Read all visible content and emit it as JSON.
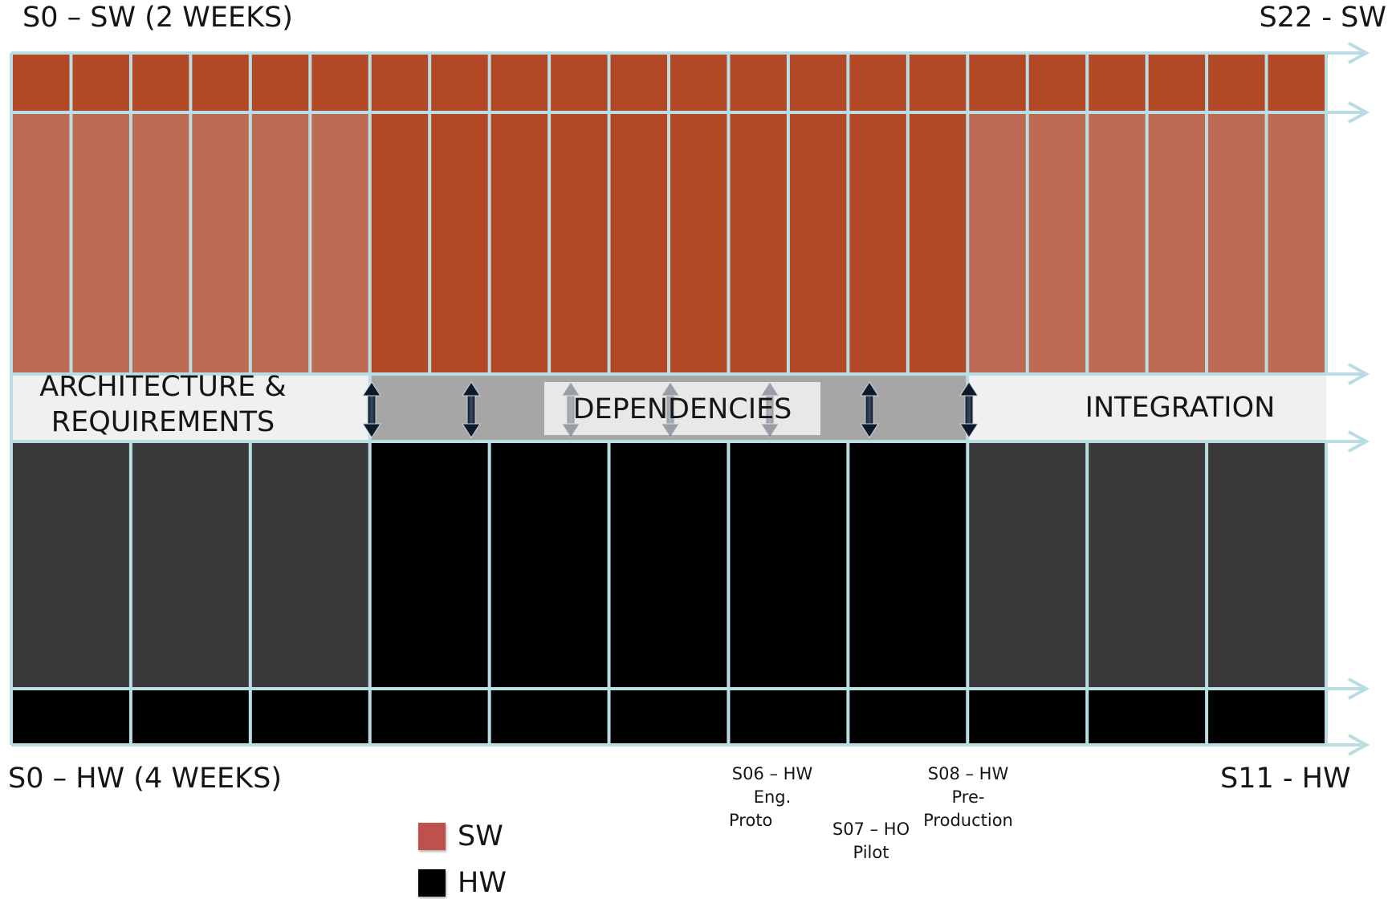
{
  "labels": {
    "sw_start": "S0 – SW (2 WEEKS)",
    "sw_end": "S22 - SW",
    "hw_start": "S0 – HW (4 WEEKS)",
    "hw_end": "S11 - HW"
  },
  "phases": {
    "architecture": [
      "ARCHITECTURE &",
      "REQUIREMENTS"
    ],
    "dependencies": "DEPENDENCIES",
    "integration": "INTEGRATION"
  },
  "milestones": {
    "s06": [
      "S06 – HW",
      "Eng.",
      "Proto"
    ],
    "s07": [
      "S07 – HO",
      "Pilot"
    ],
    "s08": [
      "S08 – HW",
      "Pre-",
      "Production"
    ]
  },
  "legend": [
    {
      "label": "SW",
      "color": "#c0504d"
    },
    {
      "label": "HW",
      "color": "#000000"
    }
  ],
  "colors": {
    "sw_dark": "#b34827",
    "sw_light": "#bc6a53",
    "hw_black": "#000000",
    "hw_gray": "#3b393a",
    "grid_line": "#b9dde3",
    "band_gray": "#a6a6a6",
    "band_light": "#f0f0f0"
  },
  "structure": {
    "sw_sprints": 22,
    "hw_sprints": 11,
    "architecture_sprints_hw": 3,
    "integration_sprints_hw": 3
  }
}
